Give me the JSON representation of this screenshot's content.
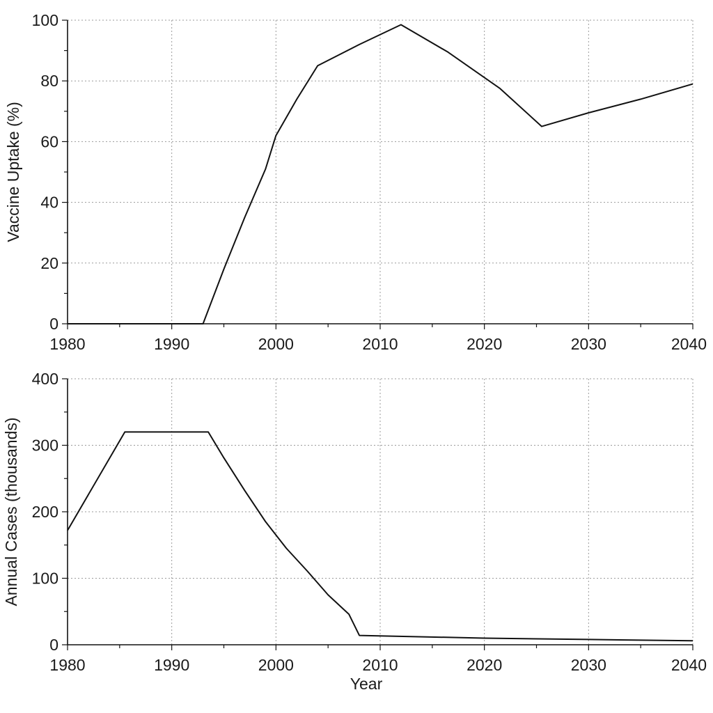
{
  "colors": {
    "line": "#111111",
    "grid": "#9a9a9a",
    "axis": "#111111",
    "background": "#ffffff"
  },
  "chart_data": [
    {
      "type": "line",
      "title": "",
      "xlabel": "",
      "ylabel": "Vaccine Uptake (%)",
      "xlim": [
        1980,
        2040
      ],
      "ylim": [
        0,
        100
      ],
      "xticks": [
        1980,
        1990,
        2000,
        2010,
        2020,
        2030,
        2040
      ],
      "yticks": [
        0,
        20,
        40,
        60,
        80,
        100
      ],
      "grid": true,
      "series": [
        {
          "x": [
            1980,
            1993,
            1995,
            1997,
            1999,
            2000,
            2002,
            2004,
            2008,
            2012,
            2016.5,
            2021.5,
            2025.5,
            2030,
            2035,
            2040
          ],
          "y": [
            0,
            0,
            18,
            35,
            51,
            62,
            74,
            85,
            92,
            98.5,
            89.5,
            77.5,
            65,
            69.5,
            74,
            79
          ]
        }
      ]
    },
    {
      "type": "line",
      "title": "",
      "xlabel": "Year",
      "ylabel": "Annual Cases (thousands)",
      "xlim": [
        1980,
        2040
      ],
      "ylim": [
        0,
        400
      ],
      "xticks": [
        1980,
        1990,
        2000,
        2010,
        2020,
        2030,
        2040
      ],
      "yticks": [
        0,
        100,
        200,
        300,
        400
      ],
      "grid": true,
      "series": [
        {
          "x": [
            1980,
            1985.5,
            1993.5,
            1995,
            1997,
            1999,
            2001,
            2003,
            2005,
            2007,
            2008,
            2020,
            2030,
            2040
          ],
          "y": [
            172,
            320,
            320,
            281,
            232,
            185,
            145,
            111,
            75,
            46,
            14,
            10,
            8,
            6
          ]
        }
      ]
    }
  ]
}
